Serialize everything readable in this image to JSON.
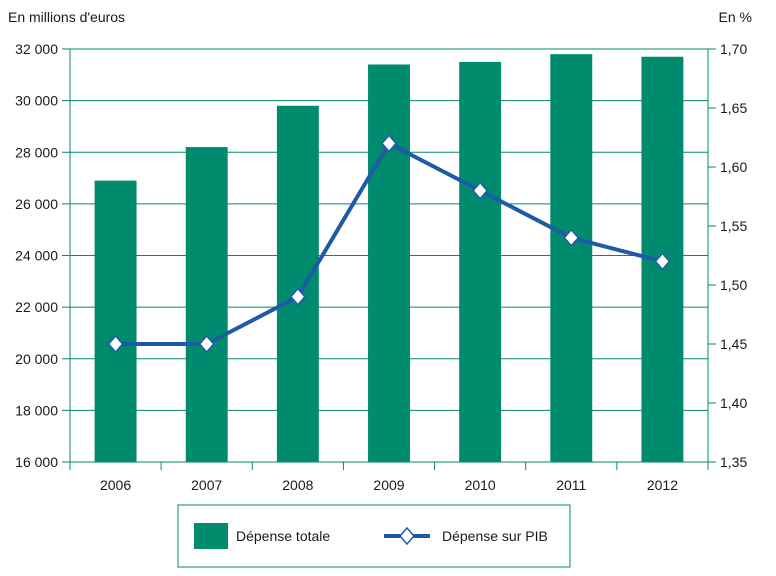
{
  "chart_data": {
    "type": "bar",
    "categories": [
      "2006",
      "2007",
      "2008",
      "2009",
      "2010",
      "2011",
      "2012"
    ],
    "y_left": {
      "unit_label": "En millions d'euros",
      "range": [
        16000,
        32000
      ],
      "ticks": [
        16000,
        18000,
        20000,
        22000,
        24000,
        26000,
        28000,
        30000,
        32000
      ],
      "tick_labels": [
        "16 000",
        "18 000",
        "20 000",
        "22 000",
        "24 000",
        "26 000",
        "28 000",
        "30 000",
        "32 000"
      ]
    },
    "y_right": {
      "unit_label": "En %",
      "range": [
        1.35,
        1.7
      ],
      "ticks": [
        1.35,
        1.4,
        1.45,
        1.5,
        1.55,
        1.6,
        1.65,
        1.7
      ],
      "tick_labels": [
        "1,35",
        "1,40",
        "1,45",
        "1,50",
        "1,55",
        "1,60",
        "1,65",
        "1,70"
      ]
    },
    "series": [
      {
        "name": "Dépense totale",
        "type": "bar",
        "axis": "left",
        "color": "#008a6e",
        "values": [
          26900,
          28200,
          29800,
          31400,
          31500,
          31800,
          31700
        ]
      },
      {
        "name": "Dépense sur PIB",
        "type": "line",
        "axis": "right",
        "color": "#1f5aa6",
        "marker": "diamond",
        "values": [
          1.45,
          1.45,
          1.49,
          1.62,
          1.58,
          1.54,
          1.52
        ]
      }
    ],
    "grid": true,
    "gridline_color": "#008a6e",
    "legend_position": "bottom"
  }
}
